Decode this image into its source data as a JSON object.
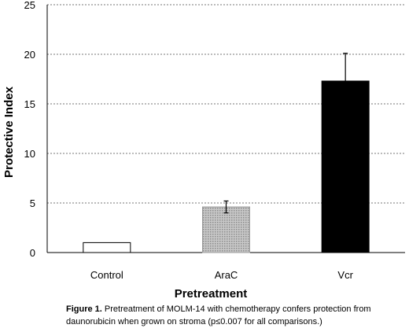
{
  "chart_data": {
    "type": "bar",
    "categories": [
      "Control",
      "AraC",
      "Vcr"
    ],
    "values": [
      1,
      4.6,
      17.3
    ],
    "errors": [
      0,
      0.6,
      2.8
    ],
    "ylabel": "Protective Index",
    "xlabel": "Pretreatment",
    "ylim": [
      0,
      25
    ],
    "yticks": [
      0,
      5,
      10,
      15,
      20,
      25
    ],
    "grid": true,
    "bar_styles": [
      {
        "fill": "#ffffff",
        "stroke": "#000000"
      },
      {
        "fill": "#bdbdbd",
        "stroke": "#9a9a9a",
        "pattern": "dotted"
      },
      {
        "fill": "#000000",
        "stroke": "#000000"
      }
    ]
  },
  "caption": {
    "label": "Figure 1.",
    "text": " Pretreatment of MOLM-14 with chemotherapy confers protection from daunorubicin when grown on stroma (p≤0.007 for all comparisons.)"
  }
}
